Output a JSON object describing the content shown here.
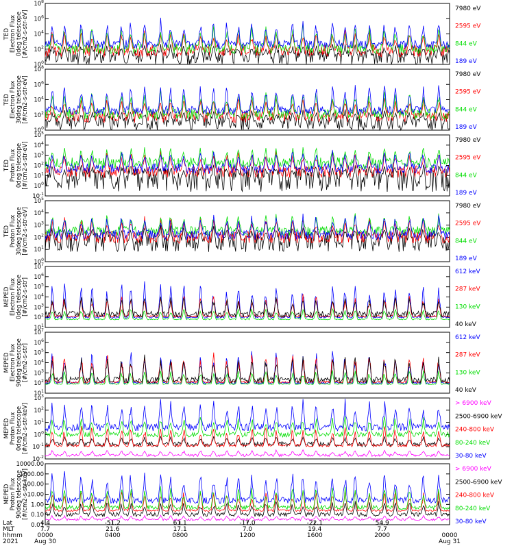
{
  "chart_data": [
    {
      "type": "line",
      "ylabel": [
        "TED",
        "Electron Flux",
        "0deg telescope",
        "[#/cm2-s-str-eV]"
      ],
      "yscale": "log",
      "yticks": [
        "10^0",
        "10^2",
        "10^4",
        "10^6",
        "10^8"
      ],
      "ylim": [
        1,
        100000000
      ],
      "series": [
        {
          "name": "7980 eV",
          "color": "#000000",
          "base": 1.0,
          "noise": 1.0,
          "spike_height": 1.5
        },
        {
          "name": "2595 eV",
          "color": "#ff0000",
          "base": 1.8,
          "noise": 0.8,
          "spike_height": 2.3
        },
        {
          "name": "844 eV",
          "color": "#00dd00",
          "base": 2.1,
          "noise": 0.7,
          "spike_height": 2.8
        },
        {
          "name": "189 eV",
          "color": "#0000ff",
          "base": 2.6,
          "noise": 0.6,
          "spike_height": 3.0
        }
      ]
    },
    {
      "type": "line",
      "ylabel": [
        "TED",
        "Electron Flux",
        "30deg telescope",
        "[#/cm2-s-str-eV]"
      ],
      "yscale": "log",
      "yticks": [
        "10^0",
        "10^2",
        "10^4",
        "10^6",
        "10^8"
      ],
      "ylim": [
        1,
        100000000
      ],
      "series": [
        {
          "name": "7980 eV",
          "color": "#000000",
          "base": 1.0,
          "noise": 1.0,
          "spike_height": 1.5
        },
        {
          "name": "2595 eV",
          "color": "#ff0000",
          "base": 1.8,
          "noise": 0.8,
          "spike_height": 2.3
        },
        {
          "name": "844 eV",
          "color": "#00dd00",
          "base": 2.1,
          "noise": 0.7,
          "spike_height": 2.8
        },
        {
          "name": "189 eV",
          "color": "#0000ff",
          "base": 2.6,
          "noise": 0.6,
          "spike_height": 3.0
        }
      ]
    },
    {
      "type": "line",
      "ylabel": [
        "TED",
        "Proton Flux",
        "0deg telescope",
        "[#/cm2-s-str-eV]"
      ],
      "yscale": "log",
      "yticks": [
        "10^-1",
        "10^0",
        "10^1",
        "10^2",
        "10^3",
        "10^4",
        "10^5"
      ],
      "ylim": [
        0.1,
        100000
      ],
      "series": [
        {
          "name": "7980 eV",
          "color": "#000000",
          "base": 0.6,
          "noise": 1.2,
          "spike_height": 1.4
        },
        {
          "name": "2595 eV",
          "color": "#ff0000",
          "base": 1.4,
          "noise": 0.6,
          "spike_height": 1.8
        },
        {
          "name": "844 eV",
          "color": "#00dd00",
          "base": 2.2,
          "noise": 0.6,
          "spike_height": 1.5
        },
        {
          "name": "189 eV",
          "color": "#0000ff",
          "base": 1.7,
          "noise": 0.5,
          "spike_height": 1.6
        }
      ]
    },
    {
      "type": "line",
      "ylabel": [
        "TED",
        "Proton Flux",
        "30deg telescope",
        "[#/cm2-s-str-eV]"
      ],
      "yscale": "log",
      "yticks": [
        "10^0",
        "10^1",
        "10^2",
        "10^3",
        "10^4",
        "10^5"
      ],
      "ylim": [
        1,
        100000
      ],
      "series": [
        {
          "name": "7980 eV",
          "color": "#000000",
          "base": 1.6,
          "noise": 0.8,
          "spike_height": 1.2
        },
        {
          "name": "2595 eV",
          "color": "#ff0000",
          "base": 2.0,
          "noise": 0.5,
          "spike_height": 1.6
        },
        {
          "name": "844 eV",
          "color": "#00dd00",
          "base": 2.5,
          "noise": 0.4,
          "spike_height": 1.3
        },
        {
          "name": "189 eV",
          "color": "#0000ff",
          "base": 2.2,
          "noise": 0.4,
          "spike_height": 1.5
        }
      ]
    },
    {
      "type": "line",
      "ylabel": [
        "MEPED",
        "Electron Flux",
        "0deg telescope",
        "[#/cm2-s-str]"
      ],
      "yscale": "log",
      "yticks": [
        "10^1",
        "10^2",
        "10^3",
        "10^4",
        "10^5",
        "10^6",
        "10^7"
      ],
      "ylim": [
        10,
        10000000
      ],
      "series": [
        {
          "name": "612 keV",
          "color": "#0000ff",
          "base": 2.0,
          "noise": 0.1,
          "spike_height": 3.2
        },
        {
          "name": "287 keV",
          "color": "#ff0000",
          "base": 2.1,
          "noise": 0.1,
          "spike_height": 2.0
        },
        {
          "name": "130 keV",
          "color": "#00dd00",
          "base": 1.8,
          "noise": 0.05,
          "spike_height": 1.0
        },
        {
          "name": "40 keV",
          "color": "#000000",
          "base": 2.3,
          "noise": 0.3,
          "spike_height": 1.6
        }
      ]
    },
    {
      "type": "line",
      "ylabel": [
        "MEPED",
        "Electron Flux",
        "90deg telescope",
        "[#/cm2-s-str]"
      ],
      "yscale": "log",
      "yticks": [
        "10^1",
        "10^2",
        "10^3",
        "10^4",
        "10^5",
        "10^6",
        "10^7"
      ],
      "ylim": [
        10,
        10000000
      ],
      "series": [
        {
          "name": "612 keV",
          "color": "#0000ff",
          "base": 2.0,
          "noise": 0.1,
          "spike_height": 3.0
        },
        {
          "name": "287 keV",
          "color": "#ff0000",
          "base": 2.1,
          "noise": 0.1,
          "spike_height": 2.8
        },
        {
          "name": "130 keV",
          "color": "#00dd00",
          "base": 1.9,
          "noise": 0.05,
          "spike_height": 1.2
        },
        {
          "name": "40 keV",
          "color": "#000000",
          "base": 2.3,
          "noise": 0.3,
          "spike_height": 2.2
        }
      ]
    },
    {
      "type": "line",
      "ylabel": [
        "MEPED",
        "Proton Flux",
        "0deg telescope",
        "[#/cm2-s-str-keV]"
      ],
      "yscale": "log",
      "yticks": [
        "10^-2",
        "10^-1",
        "10^0",
        "10^1",
        "10^2",
        "10^3"
      ],
      "ylim": [
        0.01,
        1000
      ],
      "series": [
        {
          "name": "> 6900 keV",
          "color": "#ff00ff",
          "base": -1.7,
          "noise": 0.1,
          "spike_height": 0.4
        },
        {
          "name": "2500-6900 keV",
          "color": "#000000",
          "base": -0.8,
          "noise": 0.2,
          "spike_height": 0.6
        },
        {
          "name": "240-800 keV",
          "color": "#ff0000",
          "base": -0.9,
          "noise": 0.1,
          "spike_height": 1.5
        },
        {
          "name": "80-240 keV",
          "color": "#00dd00",
          "base": 0.0,
          "noise": 0.2,
          "spike_height": 1.4
        },
        {
          "name": "30-80 keV",
          "color": "#0000ff",
          "base": 0.6,
          "noise": 0.3,
          "spike_height": 2.0
        }
      ]
    },
    {
      "type": "line",
      "ylabel": [
        "MEPED",
        "Proton Flux",
        "90deg telescope",
        "[#/cm2-s-str-keV]"
      ],
      "yscale": "log",
      "yticks": [
        "0.01",
        "0.10",
        "1.00",
        "10.00",
        "100.00",
        "1000.00",
        "10000.00"
      ],
      "ylim": [
        0.01,
        10000
      ],
      "series": [
        {
          "name": "> 6900 keV",
          "color": "#ff00ff",
          "base": -1.5,
          "noise": 0.1,
          "spike_height": 0.4
        },
        {
          "name": "2500-6900 keV",
          "color": "#000000",
          "base": -1.0,
          "noise": 0.2,
          "spike_height": 1.2
        },
        {
          "name": "240-800 keV",
          "color": "#ff0000",
          "base": -0.6,
          "noise": 0.1,
          "spike_height": 1.8
        },
        {
          "name": "80-240 keV",
          "color": "#00dd00",
          "base": -0.3,
          "noise": 0.2,
          "spike_height": 1.8
        },
        {
          "name": "30-80 keV",
          "color": "#0000ff",
          "base": 0.4,
          "noise": 0.3,
          "spike_height": 2.6
        }
      ]
    }
  ],
  "xaxis": {
    "row_labels": [
      "Lat",
      "MLT",
      "hhmm",
      "2021"
    ],
    "ticks": [
      {
        "lat": "4.4",
        "mlt": "7.7",
        "hhmm": "0000",
        "date": "Aug 30"
      },
      {
        "lat": "-51.2",
        "mlt": "21.6",
        "hhmm": "0400",
        "date": ""
      },
      {
        "lat": "61.1",
        "mlt": "17.1",
        "hhmm": "0800",
        "date": ""
      },
      {
        "lat": "-17.0",
        "mlt": "7.0",
        "hhmm": "1200",
        "date": ""
      },
      {
        "lat": "-22.1",
        "mlt": "19.4",
        "hhmm": "1600",
        "date": ""
      },
      {
        "lat": "54.9",
        "mlt": "7.7",
        "hhmm": "2000",
        "date": ""
      },
      {
        "lat": "",
        "mlt": "",
        "hhmm": "0000",
        "date": "Aug 31"
      }
    ]
  }
}
